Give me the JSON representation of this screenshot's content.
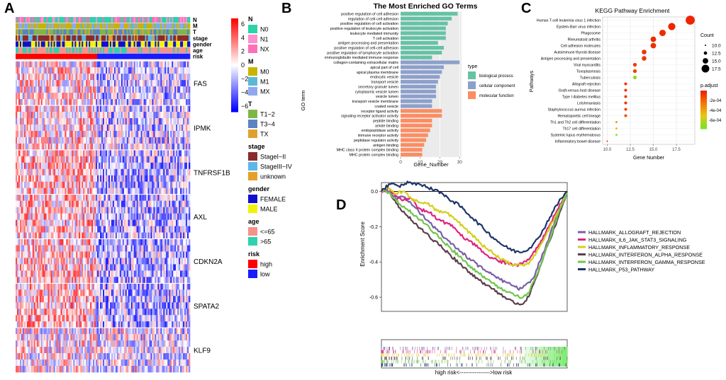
{
  "panels": {
    "a": "A",
    "b": "B",
    "c": "C",
    "d": "D"
  },
  "colors": {
    "high": "#ff0000",
    "low": "#1a1aff",
    "mid": "#ffffff",
    "go_bp": "#66c2a5",
    "go_cc": "#8da0cb",
    "go_mf": "#fc8d62"
  },
  "chart_data": [
    {
      "type": "heatmap",
      "panel": "A",
      "annotation_rows": [
        "N",
        "M",
        "T",
        "stage",
        "gender",
        "age",
        "risk"
      ],
      "genes": [
        "FAS",
        "IPMK",
        "TNFRSF1B",
        "AXL",
        "CDKN2A",
        "SPATA2",
        "KLF9"
      ],
      "colorbar": {
        "ticks": [
          "6",
          "4",
          "2",
          "0",
          "−2",
          "−4",
          "−6"
        ],
        "min": -6,
        "max": 6
      },
      "legend": [
        {
          "title": "N",
          "items": [
            {
              "label": "N0",
              "color": "#2bd3a8"
            },
            {
              "label": "N1",
              "color": "#ff8fcf"
            },
            {
              "label": "NX",
              "color": "#ff6fb8"
            }
          ]
        },
        {
          "title": "M",
          "items": [
            {
              "label": "M0",
              "color": "#c8b400"
            },
            {
              "label": "M1",
              "color": "#5bb8d6"
            },
            {
              "label": "MX",
              "color": "#8fa8f0"
            }
          ]
        },
        {
          "title": "T",
          "items": [
            {
              "label": "T1−2",
              "color": "#7fb648"
            },
            {
              "label": "T3−4",
              "color": "#5b83c4"
            },
            {
              "label": "TX",
              "color": "#e0a030"
            }
          ]
        },
        {
          "title": "stage",
          "items": [
            {
              "label": "StageI−II",
              "color": "#8b2a2a"
            },
            {
              "label": "StageIII−IV",
              "color": "#5ab8e8"
            },
            {
              "label": "unknown",
              "color": "#e6a02a"
            }
          ]
        },
        {
          "title": "gender",
          "items": [
            {
              "label": "FEMALE",
              "color": "#1010cc"
            },
            {
              "label": "MALE",
              "color": "#f2f20a"
            }
          ]
        },
        {
          "title": "age",
          "items": [
            {
              "label": "<=65",
              "color": "#f5928a"
            },
            {
              "label": ">65",
              "color": "#2ed1b0"
            }
          ]
        },
        {
          "title": "risk",
          "items": [
            {
              "label": "high",
              "color": "#ff0000"
            },
            {
              "label": "low",
              "color": "#1a1aff"
            }
          ]
        }
      ]
    },
    {
      "type": "bar",
      "orientation": "horizontal",
      "panel": "B",
      "title": "The Most Enriched GO Terms",
      "xlabel": "Gene_Number",
      "ylabel": "GO term",
      "xlim": [
        0,
        31
      ],
      "xticks": [
        0,
        10,
        20,
        30
      ],
      "legend_title": "type",
      "legend": [
        {
          "label": "biological process",
          "color": "#66c2a5"
        },
        {
          "label": "cellular component",
          "color": "#8da0cb"
        },
        {
          "label": "molecular function",
          "color": "#fc8d62"
        }
      ],
      "terms": [
        {
          "label": "positive regulation of cell adhesion",
          "value": 29,
          "type": 0
        },
        {
          "label": "regulation of cell-cell adhesion",
          "value": 26,
          "type": 0
        },
        {
          "label": "positive regulation of cell activation",
          "value": 24,
          "type": 0
        },
        {
          "label": "positive regulation of leukocyte activation",
          "value": 23,
          "type": 0
        },
        {
          "label": "leukocyte mediated immunity",
          "value": 23,
          "type": 0
        },
        {
          "label": "T cell activation",
          "value": 23,
          "type": 0
        },
        {
          "label": "antigen processing and presentation",
          "value": 19,
          "type": 0
        },
        {
          "label": "positive regulation of cell-cell adhesion",
          "value": 22,
          "type": 0
        },
        {
          "label": "positive regulation of lymphocyte activation",
          "value": 21,
          "type": 0
        },
        {
          "label": "immunoglobulin mediated immune response",
          "value": 16,
          "type": 0
        },
        {
          "label": "collagen-containing extracellular matrix",
          "value": 30,
          "type": 1
        },
        {
          "label": "apical part of cell",
          "value": 22,
          "type": 1
        },
        {
          "label": "apical plasma membrane",
          "value": 21,
          "type": 1
        },
        {
          "label": "endocytic vesicle",
          "value": 20,
          "type": 1
        },
        {
          "label": "transport vesicle",
          "value": 19,
          "type": 1
        },
        {
          "label": "secretory granule lumen",
          "value": 18,
          "type": 1
        },
        {
          "label": "cytoplasmic vesicle lumen",
          "value": 18,
          "type": 1
        },
        {
          "label": "vesicle lumen",
          "value": 18,
          "type": 1
        },
        {
          "label": "transport vesicle membrane",
          "value": 16,
          "type": 1
        },
        {
          "label": "coated vesicle",
          "value": 16,
          "type": 1
        },
        {
          "label": "receptor ligand activity",
          "value": 21,
          "type": 2
        },
        {
          "label": "signaling receptor activator activity",
          "value": 21,
          "type": 2
        },
        {
          "label": "peptide binding",
          "value": 16,
          "type": 2
        },
        {
          "label": "amide binding",
          "value": 16,
          "type": 2
        },
        {
          "label": "endopeptidase activity",
          "value": 15,
          "type": 2
        },
        {
          "label": "immune receptor activity",
          "value": 14,
          "type": 2
        },
        {
          "label": "peptidase regulator activity",
          "value": 13,
          "type": 2
        },
        {
          "label": "antigen binding",
          "value": 12,
          "type": 2
        },
        {
          "label": "MHC class II protein complex binding",
          "value": 11,
          "type": 2
        },
        {
          "label": "MHC protein complex binding",
          "value": 11,
          "type": 2
        }
      ]
    },
    {
      "type": "scatter",
      "panel": "C",
      "title": "KEGG Pathway Enrichment",
      "xlabel": "Gene Number",
      "ylabel": "Pathways",
      "xlim": [
        9.5,
        19.5
      ],
      "xticks": [
        10.0,
        12.5,
        15.0,
        17.5
      ],
      "xtick_labels": [
        "10.0",
        "12.5",
        "15.0",
        "17.5"
      ],
      "size_legend_title": "Count",
      "size_legend": [
        "10.0",
        "12.5",
        "15.0",
        "17.5"
      ],
      "size_values": [
        10.0,
        12.5,
        15.0,
        17.5
      ],
      "color_legend_title": "p.adjust",
      "color_ticks": [
        "-2e-04",
        "-4e-04",
        "-6e-04"
      ],
      "points": [
        {
          "label": "Human T-cell leukemia virus 1 infection",
          "x": 19,
          "p": 1e-05
        },
        {
          "label": "Epstein-Barr virus infection",
          "x": 17,
          "p": 1e-05
        },
        {
          "label": "Phagosome",
          "x": 16,
          "p": 2e-05
        },
        {
          "label": "Rheumatoid arthritis",
          "x": 15,
          "p": 2e-05
        },
        {
          "label": "Cell adhesion molecules",
          "x": 15,
          "p": 3e-05
        },
        {
          "label": "Autoimmune thyroid disease",
          "x": 14,
          "p": 4e-05
        },
        {
          "label": "Antigen processing and presentation",
          "x": 14,
          "p": 5e-05
        },
        {
          "label": "Viral myocarditis",
          "x": 13,
          "p": 6e-05
        },
        {
          "label": "Toxoplasmosis",
          "x": 13,
          "p": 8e-05
        },
        {
          "label": "Tuberculosis",
          "x": 13,
          "p": 0.00055
        },
        {
          "label": "Allograft rejection",
          "x": 12,
          "p": 5e-05
        },
        {
          "label": "Graft-versus-host disease",
          "x": 12,
          "p": 5e-05
        },
        {
          "label": "Type I diabetes mellitus",
          "x": 12,
          "p": 6e-05
        },
        {
          "label": "Leishmaniasis",
          "x": 12,
          "p": 6e-05
        },
        {
          "label": "Staphylococcus aureus infection",
          "x": 12,
          "p": 8e-05
        },
        {
          "label": "Hematopoietic cell lineage",
          "x": 12,
          "p": 0.00012
        },
        {
          "label": "Th1 and Th2 cell differentiation",
          "x": 11,
          "p": 0.00025
        },
        {
          "label": "Th17 cell differentiation",
          "x": 11,
          "p": 0.00035
        },
        {
          "label": "Systemic lupus erythematosus",
          "x": 11,
          "p": 0.00058
        },
        {
          "label": "Inflammatory bowel disease",
          "x": 10,
          "p": 2e-05
        }
      ]
    },
    {
      "type": "line",
      "panel": "D",
      "ylabel": "Enrichment Score",
      "xlabel": "high risk<---------------->low risk",
      "ylim": [
        -0.68,
        0.05
      ],
      "yticks": [
        0.0,
        -0.2,
        -0.4,
        -0.6
      ],
      "ytick_labels": [
        "0.0",
        "-0.2",
        "-0.4",
        "-0.6"
      ],
      "series": [
        {
          "name": "HALLMARK_ALLOGRAFT_REJECTION",
          "color": "#7a5fa8",
          "points": [
            [
              0,
              0
            ],
            [
              0.03,
              0.01
            ],
            [
              0.08,
              -0.04
            ],
            [
              0.12,
              -0.03
            ],
            [
              0.18,
              -0.09
            ],
            [
              0.24,
              -0.16
            ],
            [
              0.3,
              -0.22
            ],
            [
              0.38,
              -0.3
            ],
            [
              0.46,
              -0.37
            ],
            [
              0.52,
              -0.42
            ],
            [
              0.58,
              -0.46
            ],
            [
              0.64,
              -0.5
            ],
            [
              0.7,
              -0.53
            ],
            [
              0.74,
              -0.55
            ],
            [
              0.78,
              -0.53
            ],
            [
              0.82,
              -0.49
            ],
            [
              0.85,
              -0.4
            ],
            [
              0.89,
              -0.3
            ],
            [
              0.94,
              -0.15
            ],
            [
              1,
              0
            ]
          ]
        },
        {
          "name": "HALLMARK_IL6_JAK_STAT3_SIGNALING",
          "color": "#e0237f",
          "points": [
            [
              0,
              0
            ],
            [
              0.03,
              0.02
            ],
            [
              0.08,
              -0.02
            ],
            [
              0.12,
              -0.05
            ],
            [
              0.16,
              -0.03
            ],
            [
              0.2,
              -0.1
            ],
            [
              0.26,
              -0.12
            ],
            [
              0.32,
              -0.17
            ],
            [
              0.38,
              -0.19
            ],
            [
              0.44,
              -0.26
            ],
            [
              0.5,
              -0.3
            ],
            [
              0.56,
              -0.36
            ],
            [
              0.62,
              -0.39
            ],
            [
              0.68,
              -0.41
            ],
            [
              0.72,
              -0.42
            ],
            [
              0.76,
              -0.41
            ],
            [
              0.8,
              -0.38
            ],
            [
              0.85,
              -0.3
            ],
            [
              0.9,
              -0.2
            ],
            [
              0.95,
              -0.1
            ],
            [
              1,
              0
            ]
          ]
        },
        {
          "name": "HALLMARK_INFLAMMATORY_RESPONSE",
          "color": "#d4cf1e",
          "points": [
            [
              0,
              0
            ],
            [
              0.03,
              0.02
            ],
            [
              0.08,
              -0.01
            ],
            [
              0.12,
              0.0
            ],
            [
              0.16,
              -0.04
            ],
            [
              0.2,
              -0.06
            ],
            [
              0.25,
              -0.07
            ],
            [
              0.3,
              -0.11
            ],
            [
              0.36,
              -0.13
            ],
            [
              0.42,
              -0.18
            ],
            [
              0.48,
              -0.24
            ],
            [
              0.54,
              -0.3
            ],
            [
              0.6,
              -0.35
            ],
            [
              0.66,
              -0.39
            ],
            [
              0.72,
              -0.42
            ],
            [
              0.77,
              -0.42
            ],
            [
              0.81,
              -0.39
            ],
            [
              0.86,
              -0.3
            ],
            [
              0.91,
              -0.2
            ],
            [
              0.96,
              -0.1
            ],
            [
              1,
              0
            ]
          ]
        },
        {
          "name": "HALLMARK_INTERFERON_ALPHA_RESPONSE",
          "color": "#5c3f4e",
          "points": [
            [
              0,
              0
            ],
            [
              0.02,
              0.01
            ],
            [
              0.05,
              -0.02
            ],
            [
              0.09,
              -0.08
            ],
            [
              0.14,
              -0.14
            ],
            [
              0.2,
              -0.2
            ],
            [
              0.26,
              -0.26
            ],
            [
              0.32,
              -0.31
            ],
            [
              0.38,
              -0.37
            ],
            [
              0.44,
              -0.43
            ],
            [
              0.5,
              -0.48
            ],
            [
              0.56,
              -0.53
            ],
            [
              0.62,
              -0.57
            ],
            [
              0.68,
              -0.61
            ],
            [
              0.73,
              -0.64
            ],
            [
              0.77,
              -0.63
            ],
            [
              0.8,
              -0.58
            ],
            [
              0.84,
              -0.47
            ],
            [
              0.88,
              -0.35
            ],
            [
              0.92,
              -0.24
            ],
            [
              0.96,
              -0.12
            ],
            [
              1,
              0
            ]
          ]
        },
        {
          "name": "HALLMARK_INTERFERON_GAMMA_RESPONSE",
          "color": "#72c64d",
          "points": [
            [
              0,
              0
            ],
            [
              0.02,
              0.01
            ],
            [
              0.06,
              -0.03
            ],
            [
              0.1,
              -0.07
            ],
            [
              0.16,
              -0.12
            ],
            [
              0.22,
              -0.17
            ],
            [
              0.28,
              -0.23
            ],
            [
              0.34,
              -0.29
            ],
            [
              0.4,
              -0.35
            ],
            [
              0.46,
              -0.41
            ],
            [
              0.52,
              -0.46
            ],
            [
              0.58,
              -0.51
            ],
            [
              0.64,
              -0.55
            ],
            [
              0.7,
              -0.58
            ],
            [
              0.75,
              -0.6
            ],
            [
              0.79,
              -0.58
            ],
            [
              0.83,
              -0.49
            ],
            [
              0.87,
              -0.38
            ],
            [
              0.91,
              -0.26
            ],
            [
              0.95,
              -0.13
            ],
            [
              1,
              0
            ]
          ]
        },
        {
          "name": "HALLMARK_P53_PATHWAY",
          "color": "#1f3568",
          "points": [
            [
              0,
              0
            ],
            [
              0.03,
              0.03
            ],
            [
              0.06,
              0.05
            ],
            [
              0.1,
              0.03
            ],
            [
              0.14,
              0.05
            ],
            [
              0.18,
              0.04
            ],
            [
              0.24,
              0.03
            ],
            [
              0.3,
              0.0
            ],
            [
              0.36,
              -0.04
            ],
            [
              0.42,
              -0.08
            ],
            [
              0.48,
              -0.14
            ],
            [
              0.54,
              -0.2
            ],
            [
              0.6,
              -0.26
            ],
            [
              0.66,
              -0.31
            ],
            [
              0.72,
              -0.34
            ],
            [
              0.77,
              -0.34
            ],
            [
              0.82,
              -0.3
            ],
            [
              0.87,
              -0.22
            ],
            [
              0.92,
              -0.12
            ],
            [
              0.96,
              -0.05
            ],
            [
              1,
              0
            ]
          ]
        }
      ]
    }
  ]
}
